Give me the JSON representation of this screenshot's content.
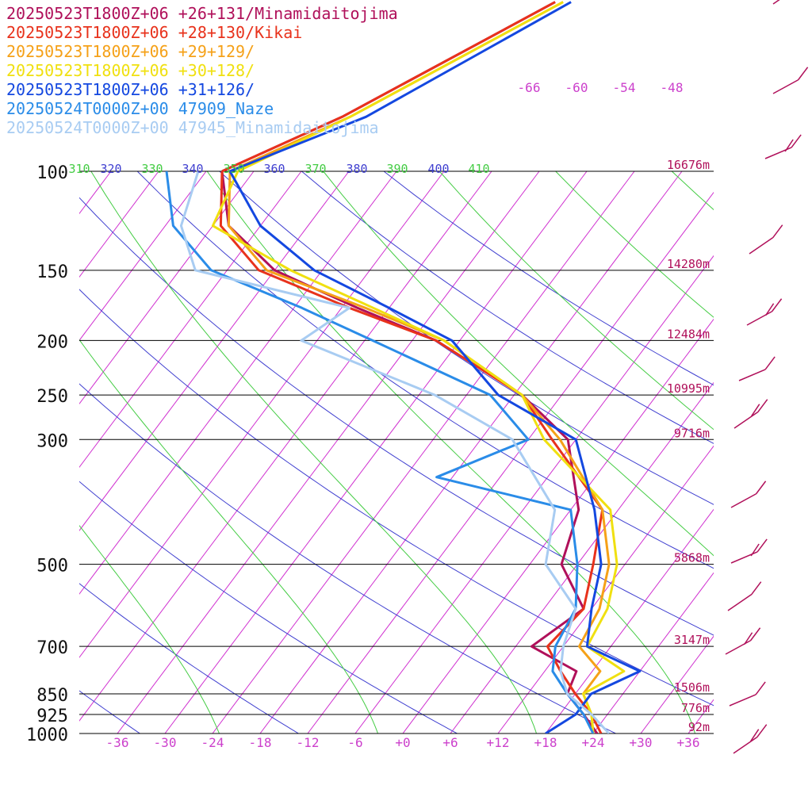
{
  "legend": [
    {
      "label": "20250523T1800Z+06 +26+131/Minamidaitojima",
      "color": "#b0105a"
    },
    {
      "label": "20250523T1800Z+06 +28+130/Kikai",
      "color": "#e8321c"
    },
    {
      "label": "20250523T1800Z+06 +29+129/",
      "color": "#f5a118"
    },
    {
      "label": "20250523T1800Z+06 +30+128/",
      "color": "#f0e010"
    },
    {
      "label": "20250523T1800Z+06 +31+126/",
      "color": "#1448e0"
    },
    {
      "label": "20250524T0000Z+00 47909_Naze",
      "color": "#2a8ce8"
    },
    {
      "label": "20250524T0000Z+00 47945_Minamidaitojima",
      "color": "#a8ccf2"
    }
  ],
  "chart_data": {
    "type": "line",
    "title": "",
    "xlabel": "",
    "ylabel": "",
    "xlim": [
      -40,
      40
    ],
    "ylim": [
      1000,
      100
    ],
    "y_scale": "log",
    "pressure_ticks": [
      {
        "p": 100,
        "label": "100",
        "height": "16676m"
      },
      {
        "p": 150,
        "label": "150",
        "height": "14280m"
      },
      {
        "p": 200,
        "label": "200",
        "height": "12484m"
      },
      {
        "p": 250,
        "label": "250",
        "height": "10995m"
      },
      {
        "p": 300,
        "label": "300",
        "height": "9716m"
      },
      {
        "p": 500,
        "label": "500",
        "height": "5868m"
      },
      {
        "p": 700,
        "label": "700",
        "height": "3147m"
      },
      {
        "p": 850,
        "label": "850",
        "height": "1506m"
      },
      {
        "p": 925,
        "label": "925",
        "height": "776m"
      },
      {
        "p": 1000,
        "label": "1000",
        "height": "92m"
      }
    ],
    "temperature_ticks": [
      {
        "t": -36,
        "label": "-36"
      },
      {
        "t": -30,
        "label": "-30"
      },
      {
        "t": -24,
        "label": "-24"
      },
      {
        "t": -18,
        "label": "-18"
      },
      {
        "t": -12,
        "label": "-12"
      },
      {
        "t": -6,
        "label": "-6"
      },
      {
        "t": 0,
        "label": "+0"
      },
      {
        "t": 6,
        "label": "+6"
      },
      {
        "t": 12,
        "label": "+12"
      },
      {
        "t": 18,
        "label": "+18"
      },
      {
        "t": 24,
        "label": "+24"
      },
      {
        "t": 30,
        "label": "+30"
      },
      {
        "t": 36,
        "label": "+36"
      }
    ],
    "upper_temperature_labels": [
      "-66",
      "-60",
      "-54",
      "-48"
    ],
    "theta_labels": [
      {
        "label": "310",
        "color": "#44cc44"
      },
      {
        "label": "320",
        "color": "#4040d0"
      },
      {
        "label": "330",
        "color": "#44cc44"
      },
      {
        "label": "340",
        "color": "#4040d0"
      },
      {
        "label": "350",
        "color": "#44cc44"
      },
      {
        "label": "360",
        "color": "#4040d0"
      },
      {
        "label": "370",
        "color": "#44cc44"
      },
      {
        "label": "380",
        "color": "#4040d0"
      },
      {
        "label": "390",
        "color": "#44cc44"
      },
      {
        "label": "400",
        "color": "#4040d0"
      },
      {
        "label": "410",
        "color": "#44cc44"
      }
    ],
    "isotherm_color": "#d030d0",
    "dry_adiabat_color": "#4040d0",
    "moist_adiabat_color": "#44cc44",
    "series": [
      {
        "name": "20250523T1800Z+06 +26+131/Minamidaitojima",
        "color": "#b0105a",
        "points": [
          [
            1000,
            24.5
          ],
          [
            925,
            21
          ],
          [
            850,
            17
          ],
          [
            775,
            16
          ],
          [
            700,
            8
          ],
          [
            600,
            11
          ],
          [
            500,
            4
          ],
          [
            400,
            1
          ],
          [
            300,
            -7
          ],
          [
            250,
            -17
          ],
          [
            200,
            -33
          ],
          [
            175,
            -46
          ],
          [
            150,
            -60
          ],
          [
            125,
            -70
          ],
          [
            100,
            -76
          ],
          [
            80,
            -66
          ],
          [
            50,
            -50
          ]
        ]
      },
      {
        "name": "20250523T1800Z+06 +28+130/Kikai",
        "color": "#e8321c",
        "points": [
          [
            1000,
            25
          ],
          [
            925,
            22
          ],
          [
            850,
            18
          ],
          [
            775,
            14
          ],
          [
            700,
            10
          ],
          [
            600,
            11
          ],
          [
            500,
            8
          ],
          [
            400,
            4
          ],
          [
            300,
            -9
          ],
          [
            250,
            -17
          ],
          [
            200,
            -33
          ],
          [
            175,
            -47
          ],
          [
            150,
            -62
          ],
          [
            125,
            -71
          ],
          [
            100,
            -76
          ],
          [
            80,
            -66
          ],
          [
            50,
            -50
          ]
        ]
      },
      {
        "name": "20250523T1800Z+06 +29+129/",
        "color": "#f5a118",
        "points": [
          [
            1000,
            24
          ],
          [
            925,
            22
          ],
          [
            850,
            19
          ],
          [
            775,
            19
          ],
          [
            700,
            14
          ],
          [
            600,
            13
          ],
          [
            500,
            10
          ],
          [
            400,
            4
          ],
          [
            300,
            -8
          ],
          [
            250,
            -17
          ],
          [
            200,
            -32
          ],
          [
            175,
            -45
          ],
          [
            150,
            -61
          ],
          [
            125,
            -70
          ],
          [
            100,
            -75
          ],
          [
            80,
            -65
          ],
          [
            50,
            -49
          ]
        ]
      },
      {
        "name": "20250523T1800Z+06 +30+128/",
        "color": "#f0e010",
        "points": [
          [
            1000,
            24
          ],
          [
            925,
            22
          ],
          [
            850,
            19
          ],
          [
            775,
            22
          ],
          [
            700,
            15
          ],
          [
            600,
            14
          ],
          [
            500,
            11
          ],
          [
            400,
            5
          ],
          [
            300,
            -10
          ],
          [
            250,
            -17
          ],
          [
            200,
            -32
          ],
          [
            175,
            -44
          ],
          [
            150,
            -58
          ],
          [
            125,
            -72
          ],
          [
            100,
            -74
          ],
          [
            80,
            -65
          ],
          [
            50,
            -49
          ]
        ]
      },
      {
        "name": "20250523T1800Z+06 +31+126/",
        "color": "#1448e0",
        "points": [
          [
            1000,
            18
          ],
          [
            925,
            20
          ],
          [
            850,
            20
          ],
          [
            775,
            24
          ],
          [
            700,
            15
          ],
          [
            600,
            12
          ],
          [
            500,
            9
          ],
          [
            400,
            3
          ],
          [
            300,
            -6
          ],
          [
            250,
            -20
          ],
          [
            200,
            -31
          ],
          [
            175,
            -42
          ],
          [
            150,
            -55
          ],
          [
            125,
            -66
          ],
          [
            100,
            -75
          ],
          [
            80,
            -63
          ],
          [
            50,
            -48
          ]
        ]
      },
      {
        "name": "20250524T0000Z+00 47909_Naze",
        "color": "#2a8ce8",
        "points": [
          [
            1000,
            24
          ],
          [
            925,
            21
          ],
          [
            850,
            17
          ],
          [
            775,
            13
          ],
          [
            700,
            11
          ],
          [
            600,
            10
          ],
          [
            500,
            6
          ],
          [
            400,
            0
          ],
          [
            350,
            -20
          ],
          [
            300,
            -12
          ],
          [
            250,
            -21
          ],
          [
            200,
            -41
          ],
          [
            175,
            -53
          ],
          [
            150,
            -68
          ],
          [
            125,
            -77
          ],
          [
            100,
            -83
          ]
        ]
      },
      {
        "name": "20250524T0000Z+00 47945_Minamidaitojima",
        "color": "#a8ccf2",
        "points": [
          [
            1000,
            26
          ],
          [
            925,
            22
          ],
          [
            850,
            17
          ],
          [
            775,
            14
          ],
          [
            700,
            12
          ],
          [
            600,
            10
          ],
          [
            500,
            2
          ],
          [
            400,
            -2
          ],
          [
            300,
            -14
          ],
          [
            250,
            -28
          ],
          [
            200,
            -50
          ],
          [
            175,
            -47
          ],
          [
            150,
            -70
          ],
          [
            125,
            -76
          ],
          [
            100,
            -79
          ]
        ]
      }
    ]
  },
  "wind_barb_color": "#b0105a"
}
